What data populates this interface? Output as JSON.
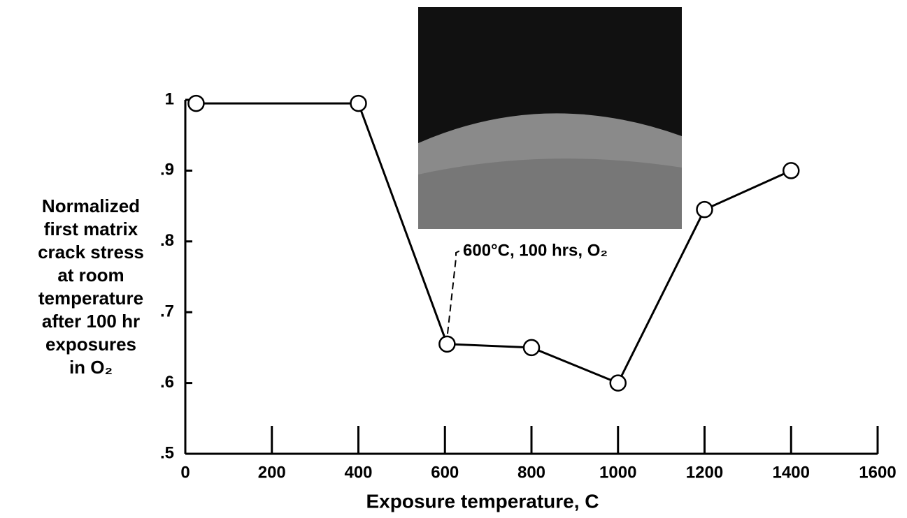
{
  "chart_data": {
    "type": "line",
    "ylabel": [
      "Normalized",
      "first matrix",
      "crack stress",
      "at room",
      "temperature",
      "after 100 hr",
      "exposures",
      "in O₂"
    ],
    "xlabel": "Exposure temperature, C",
    "annotation": "600°C, 100 hrs, O₂",
    "x": [
      25,
      400,
      605,
      800,
      1000,
      1200,
      1400
    ],
    "series": [
      {
        "color": "#000000",
        "values": [
          0.995,
          0.995,
          0.655,
          0.65,
          0.6,
          0.845,
          0.9
        ]
      }
    ],
    "xlim": [
      0,
      1600
    ],
    "xticks": [
      0,
      200,
      400,
      600,
      800,
      1000,
      1200,
      1400,
      1600
    ],
    "ylim": [
      0.5,
      1
    ],
    "yticks": [
      {
        "value": 0.5,
        "label": ".5"
      },
      {
        "value": 0.6,
        "label": ".6"
      },
      {
        "value": 0.7,
        "label": ".7"
      },
      {
        "value": 0.8,
        "label": ".8"
      },
      {
        "value": 0.9,
        "label": ".9"
      },
      1
    ]
  }
}
